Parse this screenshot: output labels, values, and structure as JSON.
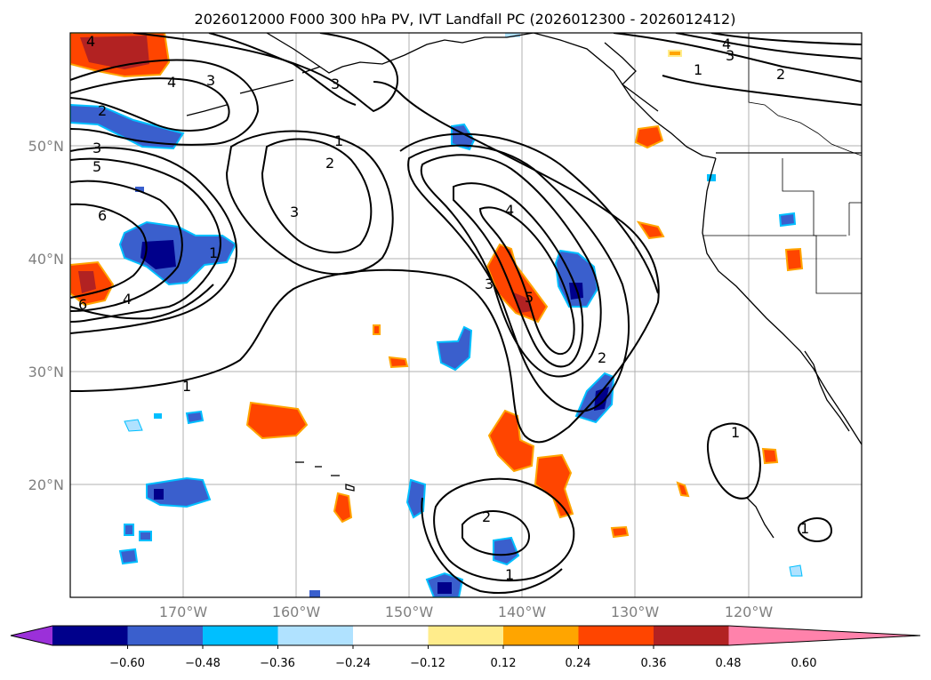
{
  "title": "2026012000 F000 300 hPa PV, IVT Landfall PC (2026012300 - 2026012412)",
  "lat_labels": [
    "50°N",
    "40°N",
    "30°N",
    "20°N"
  ],
  "lon_labels": [
    "170°W",
    "160°W",
    "150°W",
    "140°W",
    "130°W",
    "120°W"
  ],
  "colorbar": {
    "colors": [
      "#9b30d9",
      "#00008b",
      "#3a5fcd",
      "#00bfff",
      "#b0e2ff",
      "#ffffff",
      "#ffec8b",
      "#ffa500",
      "#ff4500",
      "#b22222",
      "#ff82ab"
    ],
    "tick_labels": [
      "−0.60",
      "−0.48",
      "−0.36",
      "−0.24",
      "−0.12",
      "0.12",
      "0.24",
      "0.36",
      "0.48",
      "0.60"
    ]
  },
  "contour_labels": [
    "4",
    "4",
    "3",
    "3",
    "2",
    "3",
    "5",
    "6",
    "2",
    "3",
    "1",
    "4",
    "6",
    "1",
    "4",
    "5",
    "3",
    "2",
    "1",
    "2",
    "1",
    "1",
    "4",
    "3",
    "2",
    "1",
    "1"
  ]
}
